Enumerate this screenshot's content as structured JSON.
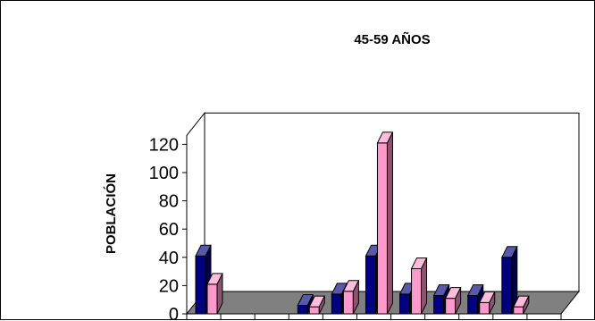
{
  "chart_data": {
    "type": "bar",
    "title": "45-59 AÑOS",
    "ylabel": "POBLACIÓN",
    "xlabel": "",
    "ylim": [
      0,
      120
    ],
    "yticks": [
      "0",
      "20",
      "40",
      "60",
      "80",
      "100",
      "120"
    ],
    "categories": [
      "",
      "",
      "",
      "",
      "",
      "",
      "",
      "",
      "",
      "",
      ""
    ],
    "series": [
      {
        "color": "#000080",
        "values": [
          41,
          0,
          0,
          6,
          14,
          41,
          14,
          13,
          13,
          40,
          null
        ]
      },
      {
        "color": "#FF99CC",
        "values": [
          21,
          0,
          0,
          5,
          16,
          121,
          32,
          11,
          8,
          5,
          null
        ]
      }
    ],
    "floor_color": "#808080",
    "grid": false,
    "legend": "none"
  }
}
